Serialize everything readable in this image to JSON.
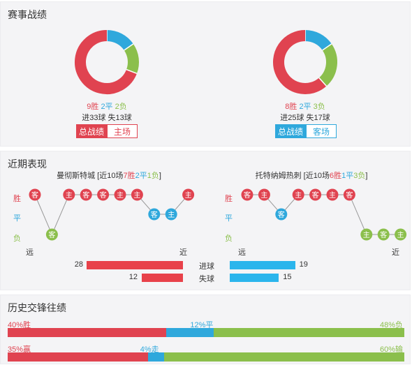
{
  "sections": {
    "record": "赛事战绩",
    "recent": "近期表现",
    "h2h": "历史交锋往绩"
  },
  "colors": {
    "win": "#e04350",
    "draw": "#2fa8dc",
    "loss": "#8bbf4c"
  },
  "teams": [
    {
      "donut": {
        "win": 9,
        "draw": 2,
        "loss": 2
      },
      "record": {
        "win": "9胜",
        "draw": "2平",
        "loss": "2负"
      },
      "goals": "进33球",
      "conceded": "失13球",
      "tabs": [
        {
          "label": "总战绩",
          "active": true
        },
        {
          "label": "主场",
          "active": false
        }
      ],
      "accent": "#e04350"
    },
    {
      "donut": {
        "win": 8,
        "draw": 2,
        "loss": 3
      },
      "record": {
        "win": "8胜",
        "draw": "2平",
        "loss": "3负"
      },
      "goals": "进25球",
      "conceded": "失17球",
      "tabs": [
        {
          "label": "总战绩",
          "active": true
        },
        {
          "label": "客场",
          "active": false
        }
      ],
      "accent": "#2fa8dc"
    }
  ],
  "recent": {
    "row_labels": [
      "胜",
      "平",
      "负"
    ],
    "far": "远",
    "near": "近",
    "teams": [
      {
        "name": "曼彻斯特城",
        "summary_prefix": " [近10场",
        "w": "7胜",
        "d": "2平",
        "l": "1负",
        "summary_suffix": "]",
        "matches": [
          {
            "result": "W",
            "venue": "客"
          },
          {
            "result": "L",
            "venue": "客"
          },
          {
            "result": "W",
            "venue": "主"
          },
          {
            "result": "W",
            "venue": "客"
          },
          {
            "result": "W",
            "venue": "客"
          },
          {
            "result": "W",
            "venue": "主"
          },
          {
            "result": "W",
            "venue": "主"
          },
          {
            "result": "D",
            "venue": "客"
          },
          {
            "result": "D",
            "venue": "主"
          },
          {
            "result": "W",
            "venue": "主"
          }
        ]
      },
      {
        "name": "托特纳姆热刺",
        "summary_prefix": " [近10场",
        "w": "6胜",
        "d": "1平",
        "l": "3负",
        "summary_suffix": "]",
        "matches": [
          {
            "result": "W",
            "venue": "客"
          },
          {
            "result": "W",
            "venue": "主"
          },
          {
            "result": "D",
            "venue": "客"
          },
          {
            "result": "W",
            "venue": "主"
          },
          {
            "result": "W",
            "venue": "客"
          },
          {
            "result": "W",
            "venue": "主"
          },
          {
            "result": "W",
            "venue": "客"
          },
          {
            "result": "L",
            "venue": "主"
          },
          {
            "result": "L",
            "venue": "客"
          },
          {
            "result": "L",
            "venue": "主"
          }
        ]
      }
    ],
    "goals_label": "进球",
    "conceded_label": "失球",
    "home_goals": 28,
    "home_conceded": 12,
    "away_goals": 19,
    "away_conceded": 15,
    "bar_max": 28
  },
  "h2h": [
    {
      "win_pct": 40,
      "draw_pct": 12,
      "loss_pct": 48,
      "win_label": "40%胜",
      "draw_label": "12%平",
      "loss_label": "48%负"
    },
    {
      "win_pct": 35,
      "draw_pct": 4,
      "loss_pct": 60,
      "win_label": "35%赢",
      "draw_label": "4%走",
      "loss_label": "60%输"
    }
  ]
}
